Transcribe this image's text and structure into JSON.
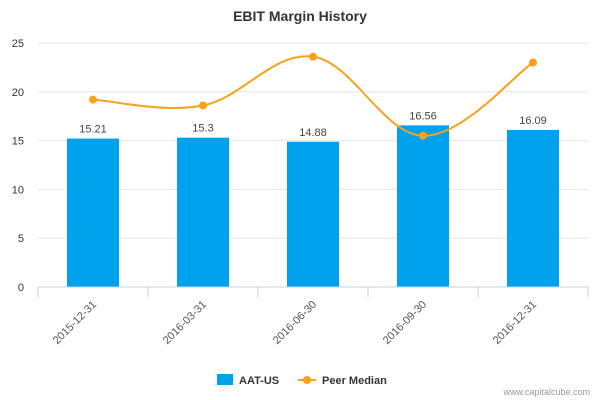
{
  "chart_data": {
    "type": "bar",
    "title": "EBIT Margin History",
    "xlabel": "",
    "ylabel": "",
    "ylim": [
      0,
      25
    ],
    "yticks": [
      0,
      5,
      10,
      15,
      20,
      25
    ],
    "grid": true,
    "legend_position": "bottom",
    "categories": [
      "2015-12-31",
      "2016-03-31",
      "2016-06-30",
      "2016-09-30",
      "2016-12-31"
    ],
    "series": [
      {
        "name": "AAT-US",
        "type": "bar",
        "color": "#00a2ed",
        "values": [
          15.21,
          15.3,
          14.88,
          16.56,
          16.09
        ],
        "labels": [
          "15.21",
          "15.3",
          "14.88",
          "16.56",
          "16.09"
        ]
      },
      {
        "name": "Peer Median",
        "type": "line",
        "smooth": true,
        "color": "#f7a21b",
        "values": [
          19.2,
          18.6,
          23.6,
          15.5,
          23.0
        ]
      }
    ]
  },
  "credit": "www.capitalcube.com"
}
